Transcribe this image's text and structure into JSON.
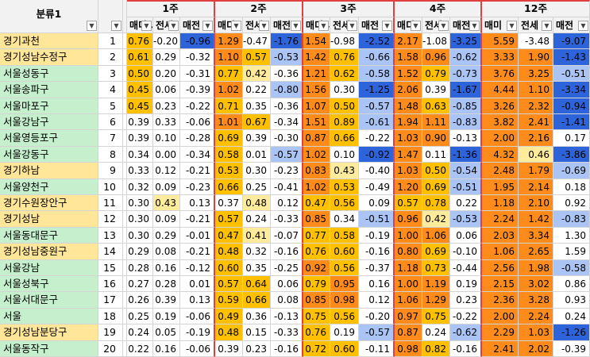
{
  "header": {
    "category_label": "분류1",
    "weeks": [
      "1주",
      "2주",
      "3주",
      "4주",
      "12주"
    ],
    "sub_labels": [
      "매디↓",
      "전세",
      "매전"
    ],
    "sub_labels_12": [
      "매미",
      "전세",
      "매전"
    ]
  },
  "colors": {
    "name_yellow": "#ffe699",
    "name_green": "#c6efce",
    "high": "#ff8c1a",
    "mid": "#ffc000",
    "light_yellow": "#ffeb9c",
    "blue_dark": "#2e64d9",
    "blue_light": "#a9c4f5",
    "white": "#ffffff"
  },
  "rows": [
    {
      "name": "경기과천",
      "idx": "1",
      "tone": "yellow",
      "v": [
        "0.76",
        "-0.20",
        "-0.96",
        "1.29",
        "-0.47",
        "-1.76",
        "1.54",
        "-0.98",
        "-2.52",
        "2.17",
        "-1.08",
        "-3.25",
        "5.59",
        "-3.48",
        "-9.07"
      ]
    },
    {
      "name": "경기성남수정구",
      "idx": "2",
      "tone": "yellow",
      "v": [
        "0.61",
        "0.29",
        "-0.32",
        "1.10",
        "0.57",
        "-0.53",
        "1.42",
        "0.76",
        "-0.66",
        "1.58",
        "0.96",
        "-0.62",
        "3.33",
        "1.90",
        "-1.43"
      ]
    },
    {
      "name": "서울성동구",
      "idx": "3",
      "tone": "green",
      "v": [
        "0.50",
        "0.20",
        "-0.31",
        "0.77",
        "0.42",
        "-0.36",
        "1.21",
        "0.62",
        "-0.58",
        "1.52",
        "0.79",
        "-0.73",
        "3.76",
        "3.25",
        "-0.51"
      ]
    },
    {
      "name": "서울송파구",
      "idx": "4",
      "tone": "green",
      "v": [
        "0.45",
        "0.06",
        "-0.39",
        "1.02",
        "0.22",
        "-0.80",
        "1.56",
        "0.30",
        "-1.25",
        "2.06",
        "0.39",
        "-1.67",
        "4.44",
        "1.10",
        "-3.34"
      ]
    },
    {
      "name": "서울마포구",
      "idx": "5",
      "tone": "green",
      "v": [
        "0.45",
        "0.23",
        "-0.22",
        "0.71",
        "0.35",
        "-0.36",
        "1.07",
        "0.50",
        "-0.57",
        "1.48",
        "0.63",
        "-0.85",
        "3.26",
        "2.32",
        "-0.94"
      ]
    },
    {
      "name": "서울강남구",
      "idx": "6",
      "tone": "green",
      "v": [
        "0.39",
        "0.33",
        "-0.06",
        "1.01",
        "0.67",
        "-0.34",
        "1.51",
        "0.89",
        "-0.61",
        "1.94",
        "1.11",
        "-0.83",
        "3.82",
        "2.41",
        "-1.41"
      ]
    },
    {
      "name": "서울영등포구",
      "idx": "7",
      "tone": "green",
      "v": [
        "0.39",
        "0.10",
        "-0.28",
        "0.69",
        "0.39",
        "-0.30",
        "0.87",
        "0.66",
        "-0.22",
        "1.03",
        "0.90",
        "-0.13",
        "2.00",
        "2.16",
        "0.17"
      ]
    },
    {
      "name": "서울강동구",
      "idx": "8",
      "tone": "green",
      "v": [
        "0.34",
        "0.00",
        "-0.34",
        "0.58",
        "0.01",
        "-0.57",
        "1.02",
        "0.10",
        "-0.92",
        "1.47",
        "0.11",
        "-1.36",
        "4.32",
        "0.46",
        "-3.86"
      ]
    },
    {
      "name": "경기하남",
      "idx": "9",
      "tone": "yellow",
      "v": [
        "0.33",
        "0.12",
        "-0.21",
        "0.53",
        "0.30",
        "-0.23",
        "0.83",
        "0.43",
        "-0.40",
        "1.03",
        "0.50",
        "-0.54",
        "2.48",
        "1.79",
        "-0.69"
      ]
    },
    {
      "name": "서울양천구",
      "idx": "10",
      "tone": "green",
      "v": [
        "0.32",
        "0.09",
        "-0.23",
        "0.66",
        "0.25",
        "-0.41",
        "1.02",
        "0.53",
        "-0.49",
        "1.20",
        "0.69",
        "-0.51",
        "1.95",
        "2.14",
        "0.18"
      ]
    },
    {
      "name": "경기수원장안구",
      "idx": "11",
      "tone": "yellow",
      "v": [
        "0.30",
        "0.43",
        "0.13",
        "0.37",
        "0.48",
        "0.12",
        "0.47",
        "0.56",
        "0.09",
        "0.57",
        "0.78",
        "0.22",
        "1.18",
        "2.10",
        "0.92"
      ]
    },
    {
      "name": "경기성남",
      "idx": "12",
      "tone": "yellow",
      "v": [
        "0.30",
        "0.09",
        "-0.21",
        "0.57",
        "0.24",
        "-0.33",
        "0.85",
        "0.34",
        "-0.51",
        "0.96",
        "0.42",
        "-0.53",
        "2.24",
        "1.42",
        "-0.83"
      ]
    },
    {
      "name": "서울동대문구",
      "idx": "13",
      "tone": "green",
      "v": [
        "0.30",
        "0.29",
        "-0.01",
        "0.47",
        "0.41",
        "-0.07",
        "0.77",
        "0.58",
        "-0.19",
        "1.00",
        "1.06",
        "0.06",
        "2.03",
        "3.34",
        "1.30"
      ]
    },
    {
      "name": "경기성남중원구",
      "idx": "14",
      "tone": "yellow",
      "v": [
        "0.29",
        "0.08",
        "-0.21",
        "0.48",
        "0.32",
        "-0.16",
        "0.76",
        "0.60",
        "-0.16",
        "0.80",
        "0.69",
        "-0.10",
        "1.06",
        "2.65",
        "1.59"
      ]
    },
    {
      "name": "서울강남",
      "idx": "15",
      "tone": "green",
      "v": [
        "0.28",
        "0.16",
        "-0.12",
        "0.60",
        "0.35",
        "-0.25",
        "0.92",
        "0.56",
        "-0.37",
        "1.18",
        "0.73",
        "-0.44",
        "2.56",
        "1.98",
        "-0.58"
      ]
    },
    {
      "name": "서울성북구",
      "idx": "16",
      "tone": "green",
      "v": [
        "0.27",
        "0.28",
        "0.01",
        "0.57",
        "0.64",
        "0.06",
        "0.79",
        "0.95",
        "0.16",
        "1.00",
        "1.19",
        "0.19",
        "2.15",
        "3.02",
        "0.86"
      ]
    },
    {
      "name": "서울서대문구",
      "idx": "17",
      "tone": "green",
      "v": [
        "0.26",
        "0.39",
        "0.13",
        "0.59",
        "0.66",
        "0.08",
        "0.85",
        "0.98",
        "0.12",
        "1.06",
        "1.29",
        "0.23",
        "2.36",
        "3.28",
        "0.93"
      ]
    },
    {
      "name": "서울",
      "idx": "18",
      "tone": "green",
      "v": [
        "0.25",
        "0.19",
        "-0.06",
        "0.49",
        "0.36",
        "-0.13",
        "0.75",
        "0.56",
        "-0.20",
        "0.97",
        "0.75",
        "-0.22",
        "2.00",
        "2.24",
        "0.24"
      ]
    },
    {
      "name": "경기성남분당구",
      "idx": "19",
      "tone": "yellow",
      "v": [
        "0.24",
        "0.05",
        "-0.19",
        "0.48",
        "0.15",
        "-0.33",
        "0.76",
        "0.19",
        "-0.57",
        "0.87",
        "0.24",
        "-0.62",
        "2.29",
        "1.03",
        "-1.26"
      ]
    },
    {
      "name": "서울동작구",
      "idx": "20",
      "tone": "green",
      "v": [
        "0.22",
        "0.16",
        "-0.06",
        "0.39",
        "0.23",
        "-0.16",
        "0.72",
        "0.60",
        "-0.11",
        "0.98",
        "0.82",
        "-0.16",
        "2.41",
        "2.02",
        "-0.39"
      ]
    }
  ]
}
